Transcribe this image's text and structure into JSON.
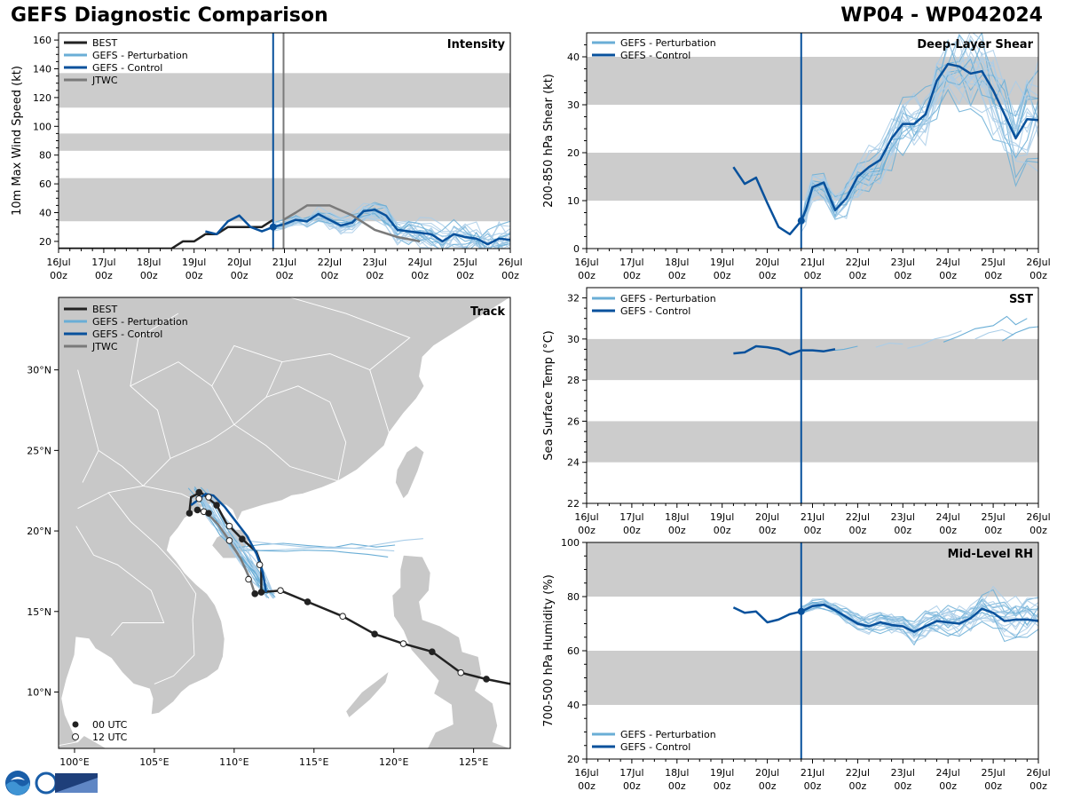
{
  "header": {
    "title": "GEFS Diagnostic Comparison",
    "storm_id": "WP04 - WP042024"
  },
  "colors": {
    "best": "#222222",
    "perturbation": "#6aaed6",
    "perturbation_light": "#a9cde8",
    "control": "#08519c",
    "jtwc": "#7a7a7a",
    "band": "#cccccc",
    "land": "#c8c8c8",
    "border": "#ffffff"
  },
  "time_axis": {
    "ticks": [
      {
        "day": 0,
        "top": "16Jul",
        "bottom": "00z"
      },
      {
        "day": 1,
        "top": "17Jul",
        "bottom": "00z"
      },
      {
        "day": 2,
        "top": "18Jul",
        "bottom": "00z"
      },
      {
        "day": 3,
        "top": "19Jul",
        "bottom": "00z"
      },
      {
        "day": 4,
        "top": "20Jul",
        "bottom": "00z"
      },
      {
        "day": 5,
        "top": "21Jul",
        "bottom": "00z"
      },
      {
        "day": 6,
        "top": "22Jul",
        "bottom": "00z"
      },
      {
        "day": 7,
        "top": "23Jul",
        "bottom": "00z"
      },
      {
        "day": 8,
        "top": "24Jul",
        "bottom": "00z"
      },
      {
        "day": 9,
        "top": "25Jul",
        "bottom": "00z"
      },
      {
        "day": 10,
        "top": "26Jul",
        "bottom": "00z"
      }
    ],
    "init_day": 4.75,
    "jtwc_init_day": 4.98
  },
  "legend": {
    "best": "BEST",
    "perturbation": "GEFS - Perturbation",
    "control": "GEFS - Control",
    "jtwc": "JTWC",
    "utc00": "00 UTC",
    "utc12": "12 UTC"
  },
  "chart_data": [
    {
      "type": "line",
      "panel": "intensity",
      "title": "Intensity",
      "ylabel": "10m Max Wind Speed (kt)",
      "ylim": [
        15,
        165
      ],
      "yticks": [
        20,
        40,
        60,
        80,
        100,
        120,
        140,
        160
      ],
      "bands": [
        [
          34,
          64
        ],
        [
          83,
          95
        ],
        [
          113,
          137
        ]
      ],
      "series": [
        {
          "name": "BEST",
          "x": [
            0,
            0.5,
            1,
            1.5,
            2,
            2.5,
            2.75,
            3,
            3.25,
            3.5,
            3.75,
            4,
            4.25,
            4.5,
            4.75
          ],
          "y": [
            15,
            15,
            15,
            15,
            15,
            15,
            20,
            20,
            25,
            25,
            30,
            30,
            30,
            30,
            35
          ]
        },
        {
          "name": "GEFS - Control",
          "x": [
            3.25,
            3.5,
            3.75,
            4,
            4.25,
            4.5,
            4.75,
            5,
            5.25,
            5.5,
            5.75,
            6,
            6.25,
            6.5,
            6.75,
            7,
            7.25,
            7.5,
            7.75,
            8,
            8.25,
            8.5,
            8.75,
            9,
            9.25,
            9.5,
            9.75,
            10
          ],
          "y": [
            27,
            25,
            34,
            38,
            30,
            27,
            30,
            32,
            35,
            34,
            39,
            35,
            31,
            33,
            41,
            42,
            38,
            28,
            27,
            26,
            25,
            20,
            25,
            23,
            22,
            18,
            22,
            21
          ]
        },
        {
          "name": "JTWC",
          "x": [
            4.98,
            5.25,
            5.5,
            6,
            6.5,
            7,
            7.5,
            8
          ],
          "y": [
            35,
            40,
            45,
            45,
            38,
            28,
            23,
            20
          ]
        }
      ]
    },
    {
      "type": "line",
      "panel": "shear",
      "title": "Deep-Layer Shear",
      "ylabel": "200-850 hPa Shear (kt)",
      "ylim": [
        0,
        45
      ],
      "yticks": [
        0,
        10,
        20,
        30,
        40
      ],
      "bands": [
        [
          10,
          20
        ],
        [
          30,
          40
        ]
      ],
      "series": [
        {
          "name": "GEFS - Control",
          "x": [
            3.25,
            3.5,
            3.75,
            4,
            4.25,
            4.5,
            4.75,
            4.85,
            5,
            5.25,
            5.5,
            5.75,
            6,
            6.25,
            6.5,
            6.75,
            7,
            7.25,
            7.5,
            7.75,
            8,
            8.25,
            8.5,
            8.75,
            9,
            9.25,
            9.5,
            9.75,
            10
          ],
          "y": [
            17,
            13.5,
            14.8,
            9.5,
            4.5,
            3,
            5.8,
            8,
            12.8,
            13.8,
            8,
            10.5,
            15,
            17,
            18.5,
            23,
            26,
            26,
            28,
            35,
            38.5,
            38,
            36.5,
            37,
            33,
            28,
            23,
            27,
            26.8
          ]
        }
      ]
    },
    {
      "type": "line",
      "panel": "sst",
      "title": "SST",
      "ylabel": "Sea Surface Temp (°C)",
      "ylim": [
        22,
        32.5
      ],
      "yticks": [
        22,
        24,
        26,
        28,
        30,
        32
      ],
      "bands": [
        [
          24,
          26
        ],
        [
          28,
          30
        ]
      ],
      "series": [
        {
          "name": "GEFS - Control",
          "x": [
            3.25,
            3.5,
            3.75,
            4,
            4.25,
            4.5,
            4.75,
            5,
            5.25,
            5.5
          ],
          "y": [
            29.3,
            29.35,
            29.65,
            29.6,
            29.5,
            29.25,
            29.45,
            29.45,
            29.4,
            29.5
          ]
        }
      ]
    },
    {
      "type": "line",
      "panel": "rh",
      "title": "Mid-Level RH",
      "ylabel": "700-500 hPa Humidity (%)",
      "ylim": [
        20,
        100
      ],
      "yticks": [
        20,
        40,
        60,
        80,
        100
      ],
      "bands": [
        [
          40,
          60
        ],
        [
          80,
          100
        ]
      ],
      "series": [
        {
          "name": "GEFS - Control",
          "x": [
            3.25,
            3.5,
            3.75,
            4,
            4.25,
            4.5,
            4.75,
            5,
            5.25,
            5.5,
            5.75,
            6,
            6.25,
            6.5,
            6.75,
            7,
            7.25,
            7.5,
            7.75,
            8,
            8.25,
            8.5,
            8.75,
            9,
            9.25,
            9.5,
            9.75,
            10
          ],
          "y": [
            76,
            74,
            74.5,
            70.5,
            71.5,
            73.5,
            74.5,
            76.5,
            77,
            75,
            72.5,
            70,
            69,
            70.5,
            69.5,
            69,
            67,
            69,
            71,
            70.5,
            70,
            72,
            75.5,
            74,
            71,
            71.5,
            71.5,
            71
          ]
        }
      ]
    },
    {
      "type": "map",
      "panel": "track",
      "title": "Track",
      "lon_range": [
        99,
        127.3
      ],
      "lat_range": [
        6.5,
        34.5
      ],
      "lon_ticks": [
        {
          "v": 100,
          "label": "100°E"
        },
        {
          "v": 105,
          "label": "105°E"
        },
        {
          "v": 110,
          "label": "110°E"
        },
        {
          "v": 115,
          "label": "115°E"
        },
        {
          "v": 120,
          "label": "120°E"
        },
        {
          "v": 125,
          "label": "125°E"
        }
      ],
      "lat_ticks": [
        {
          "v": 10,
          "label": "10°N"
        },
        {
          "v": 15,
          "label": "15°N"
        },
        {
          "v": 20,
          "label": "20°N"
        },
        {
          "v": 25,
          "label": "25°N"
        },
        {
          "v": 30,
          "label": "30°N"
        }
      ],
      "series": [
        {
          "name": "BEST",
          "lon": [
            127.3,
            125.8,
            124.2,
            122.4,
            120.6,
            118.8,
            116.8,
            114.6,
            112.9,
            111.7,
            111.7,
            111.4,
            110.5,
            109.5,
            108.9,
            107.9,
            107.3,
            107.2
          ],
          "lat": [
            10.5,
            10.8,
            11.2,
            12.5,
            13.0,
            13.6,
            14.7,
            15.6,
            16.3,
            16.2,
            17.9,
            18.7,
            19.5,
            20.5,
            21.6,
            22.4,
            22.1,
            21.2
          ],
          "markers": [
            {
              "lon": 125.8,
              "lat": 10.8,
              "utc": "00"
            },
            {
              "lon": 124.2,
              "lat": 11.2,
              "utc": "12"
            },
            {
              "lon": 122.4,
              "lat": 12.5,
              "utc": "00"
            },
            {
              "lon": 120.6,
              "lat": 13.0,
              "utc": "12"
            },
            {
              "lon": 118.8,
              "lat": 13.6,
              "utc": "00"
            },
            {
              "lon": 116.8,
              "lat": 14.7,
              "utc": "12"
            },
            {
              "lon": 114.6,
              "lat": 15.6,
              "utc": "00"
            },
            {
              "lon": 112.9,
              "lat": 16.3,
              "utc": "12"
            },
            {
              "lon": 111.7,
              "lat": 16.2,
              "utc": "00"
            },
            {
              "lon": 111.6,
              "lat": 17.9,
              "utc": "12"
            },
            {
              "lon": 110.5,
              "lat": 19.5,
              "utc": "00"
            },
            {
              "lon": 109.7,
              "lat": 20.3,
              "utc": "12"
            },
            {
              "lon": 108.9,
              "lat": 21.6,
              "utc": "00"
            },
            {
              "lon": 108.4,
              "lat": 22.1,
              "utc": "12"
            },
            {
              "lon": 107.8,
              "lat": 22.4,
              "utc": "00"
            },
            {
              "lon": 107.8,
              "lat": 22.0,
              "utc": "12"
            },
            {
              "lon": 107.7,
              "lat": 21.3,
              "utc": "00"
            },
            {
              "lon": 108.1,
              "lat": 21.2,
              "utc": "12"
            },
            {
              "lon": 107.2,
              "lat": 21.1,
              "utc": "00"
            }
          ]
        },
        {
          "name": "GEFS - Control",
          "lon": [
            112.0,
            111.8,
            111.4,
            110.8,
            110.1,
            109.4,
            108.7,
            108.2,
            107.7,
            107.3
          ],
          "lat": [
            16.2,
            17.4,
            18.6,
            19.7,
            20.6,
            21.5,
            22.2,
            22.3,
            21.9,
            21.6
          ]
        },
        {
          "name": "JTWC",
          "lon": [
            111.3,
            111.0,
            110.4,
            109.7,
            109.0,
            108.3
          ],
          "lat": [
            16.1,
            17.0,
            18.3,
            19.4,
            20.4,
            21.1
          ],
          "markers": [
            {
              "lon": 111.3,
              "lat": 16.1,
              "utc": "00"
            },
            {
              "lon": 110.9,
              "lat": 17.0,
              "utc": "12"
            },
            {
              "lon": 109.7,
              "lat": 19.4,
              "utc": "12"
            },
            {
              "lon": 108.4,
              "lat": 21.1,
              "utc": "00"
            }
          ]
        }
      ]
    }
  ]
}
